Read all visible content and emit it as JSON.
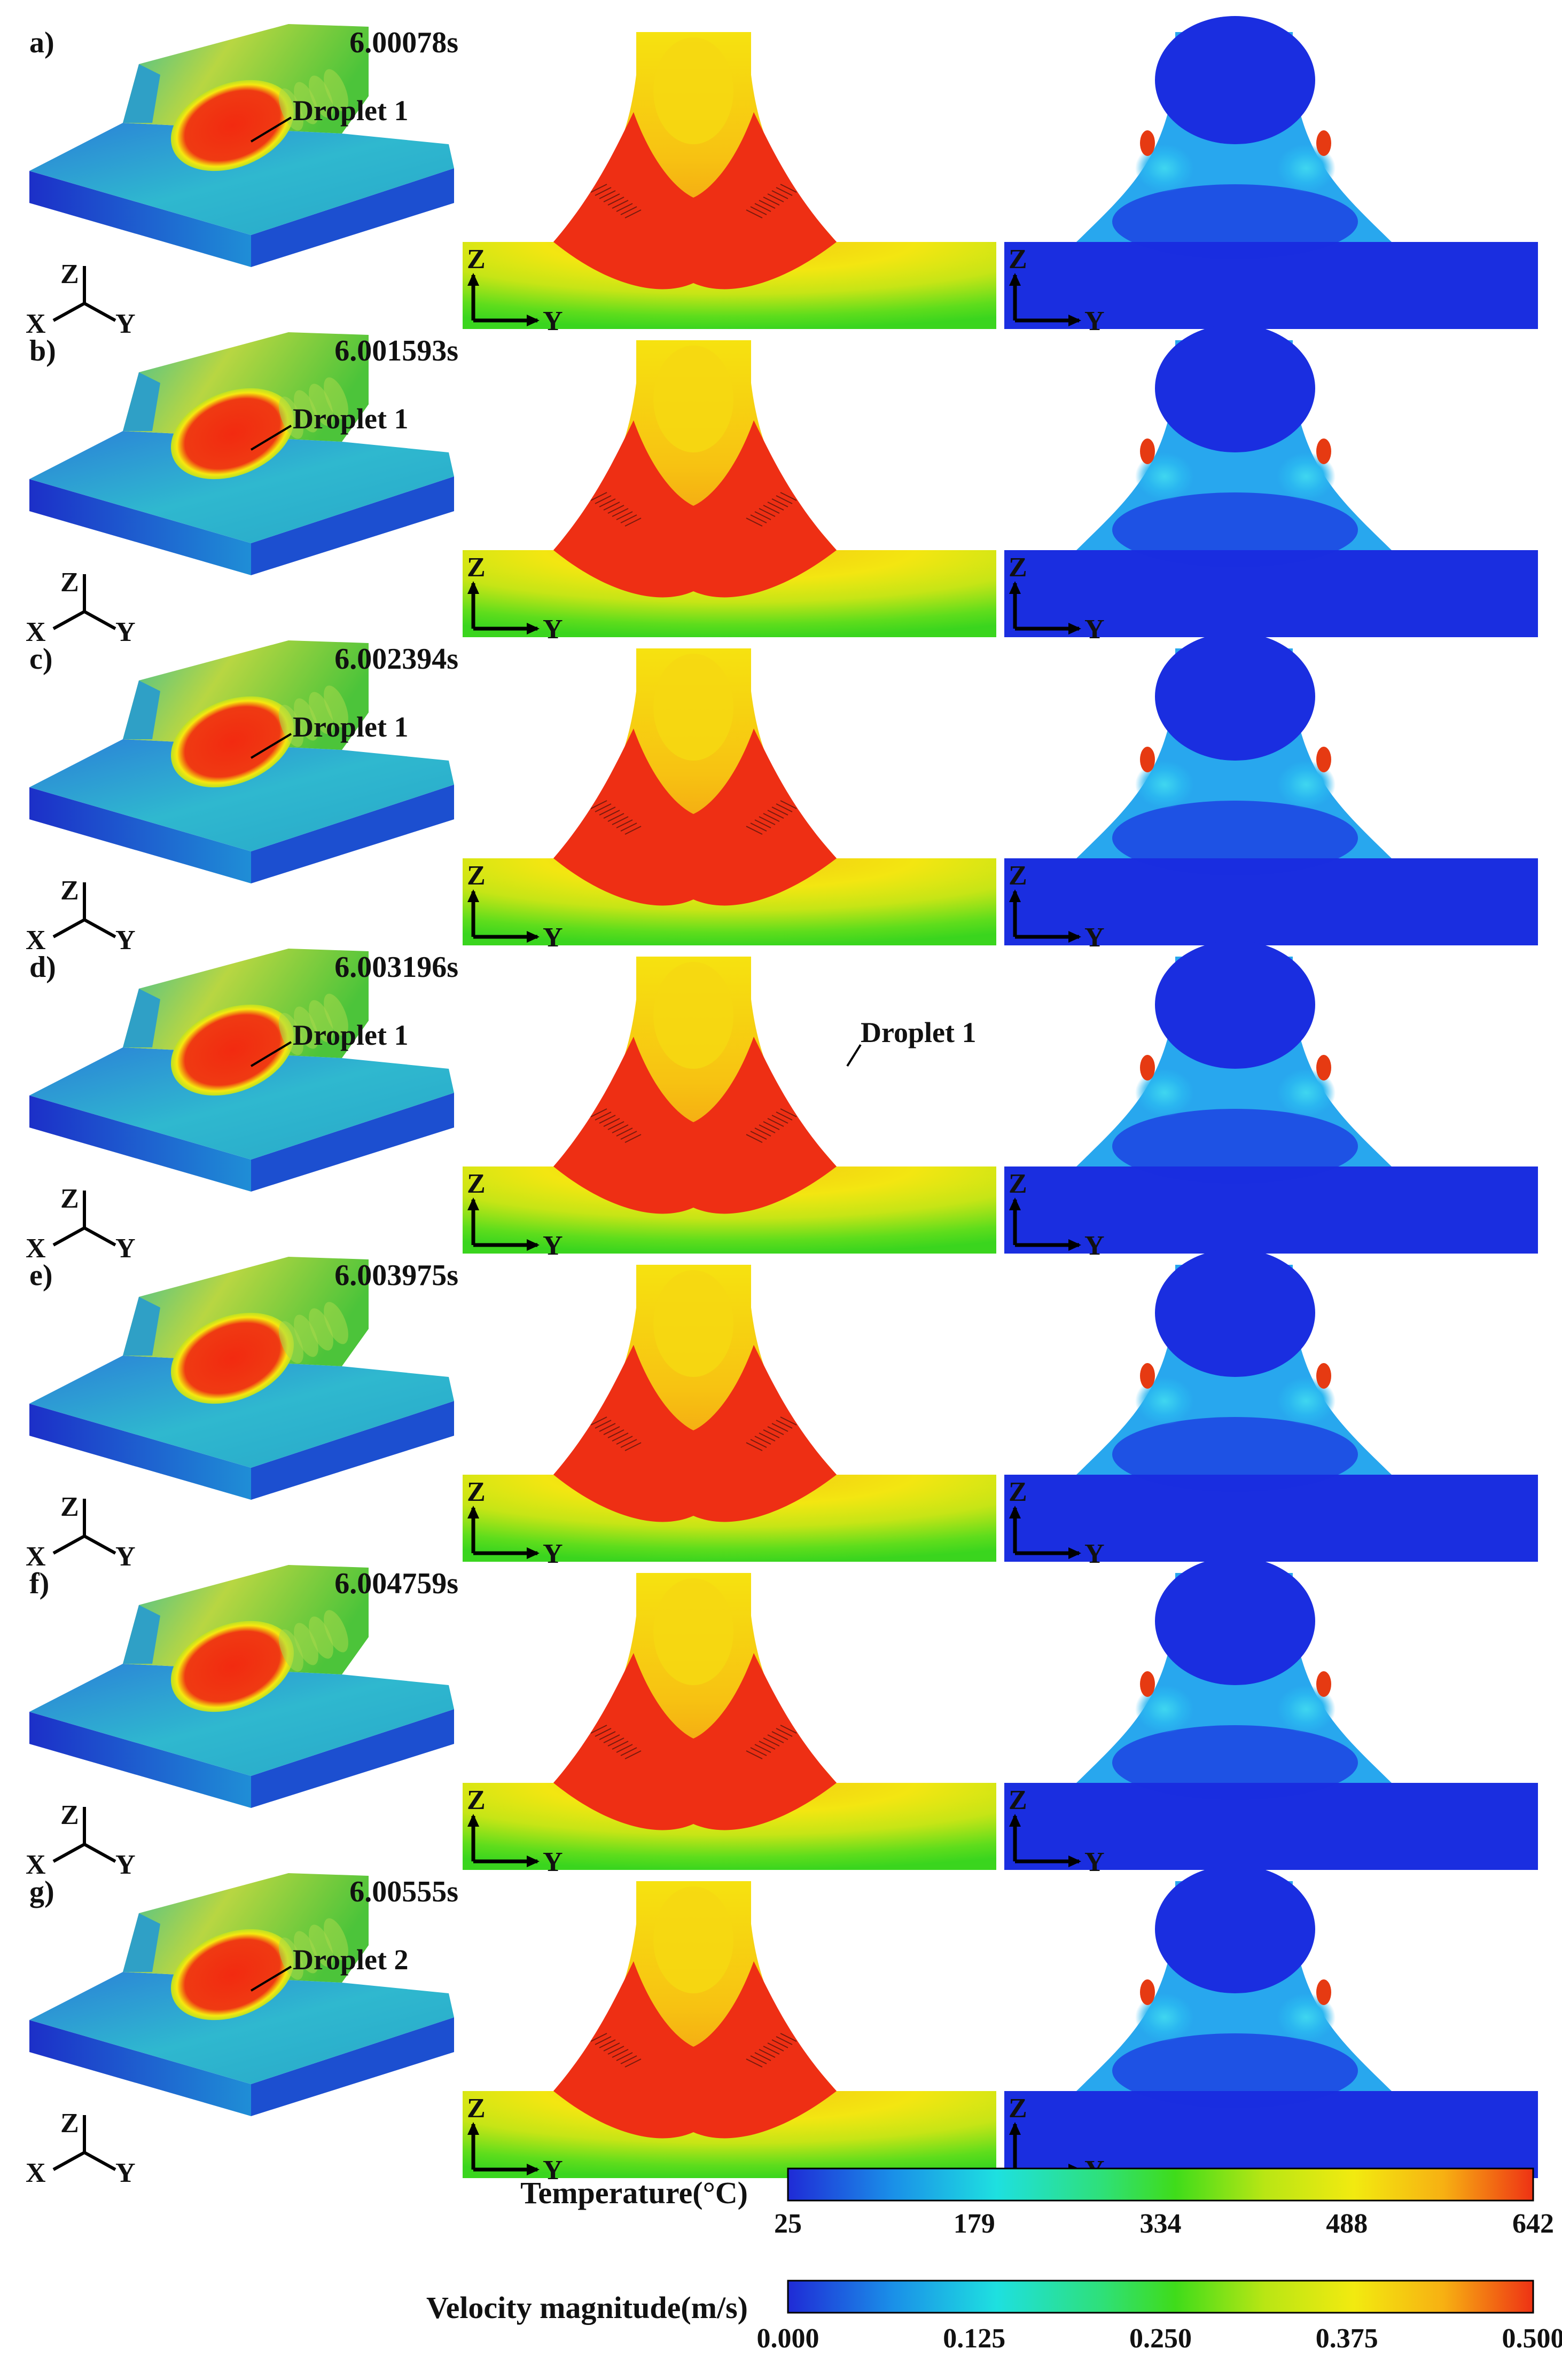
{
  "rows": [
    {
      "label": "a)",
      "time": "6.00078s",
      "droplet": "Droplet 1",
      "droplet_in_section": ""
    },
    {
      "label": "b)",
      "time": "6.001593s",
      "droplet": "Droplet 1",
      "droplet_in_section": ""
    },
    {
      "label": "c)",
      "time": "6.002394s",
      "droplet": "Droplet 1",
      "droplet_in_section": ""
    },
    {
      "label": "d)",
      "time": "6.003196s",
      "droplet": "Droplet 1",
      "droplet_in_section": "Droplet 1"
    },
    {
      "label": "e)",
      "time": "6.003975s",
      "droplet": "",
      "droplet_in_section": ""
    },
    {
      "label": "f)",
      "time": "6.004759s",
      "droplet": "",
      "droplet_in_section": ""
    },
    {
      "label": "g)",
      "time": "6.00555s",
      "droplet": "Droplet 2",
      "droplet_in_section": ""
    }
  ],
  "axes": {
    "z": "Z",
    "x": "X",
    "y": "Y"
  },
  "colorbars": [
    {
      "title": "Temperature(°C)",
      "ticks": [
        "25",
        "179",
        "334",
        "488",
        "642"
      ]
    },
    {
      "title": "Velocity magnitude(m/s)",
      "ticks": [
        "0.000",
        "0.125",
        "0.250",
        "0.375",
        "0.500"
      ]
    }
  ],
  "colormap": [
    "#1f2bd6",
    "#1a8fe8",
    "#1ee0e0",
    "#2ee07a",
    "#3fdc1a",
    "#b9e614",
    "#f2ea10",
    "#f7b012",
    "#ee3214"
  ]
}
